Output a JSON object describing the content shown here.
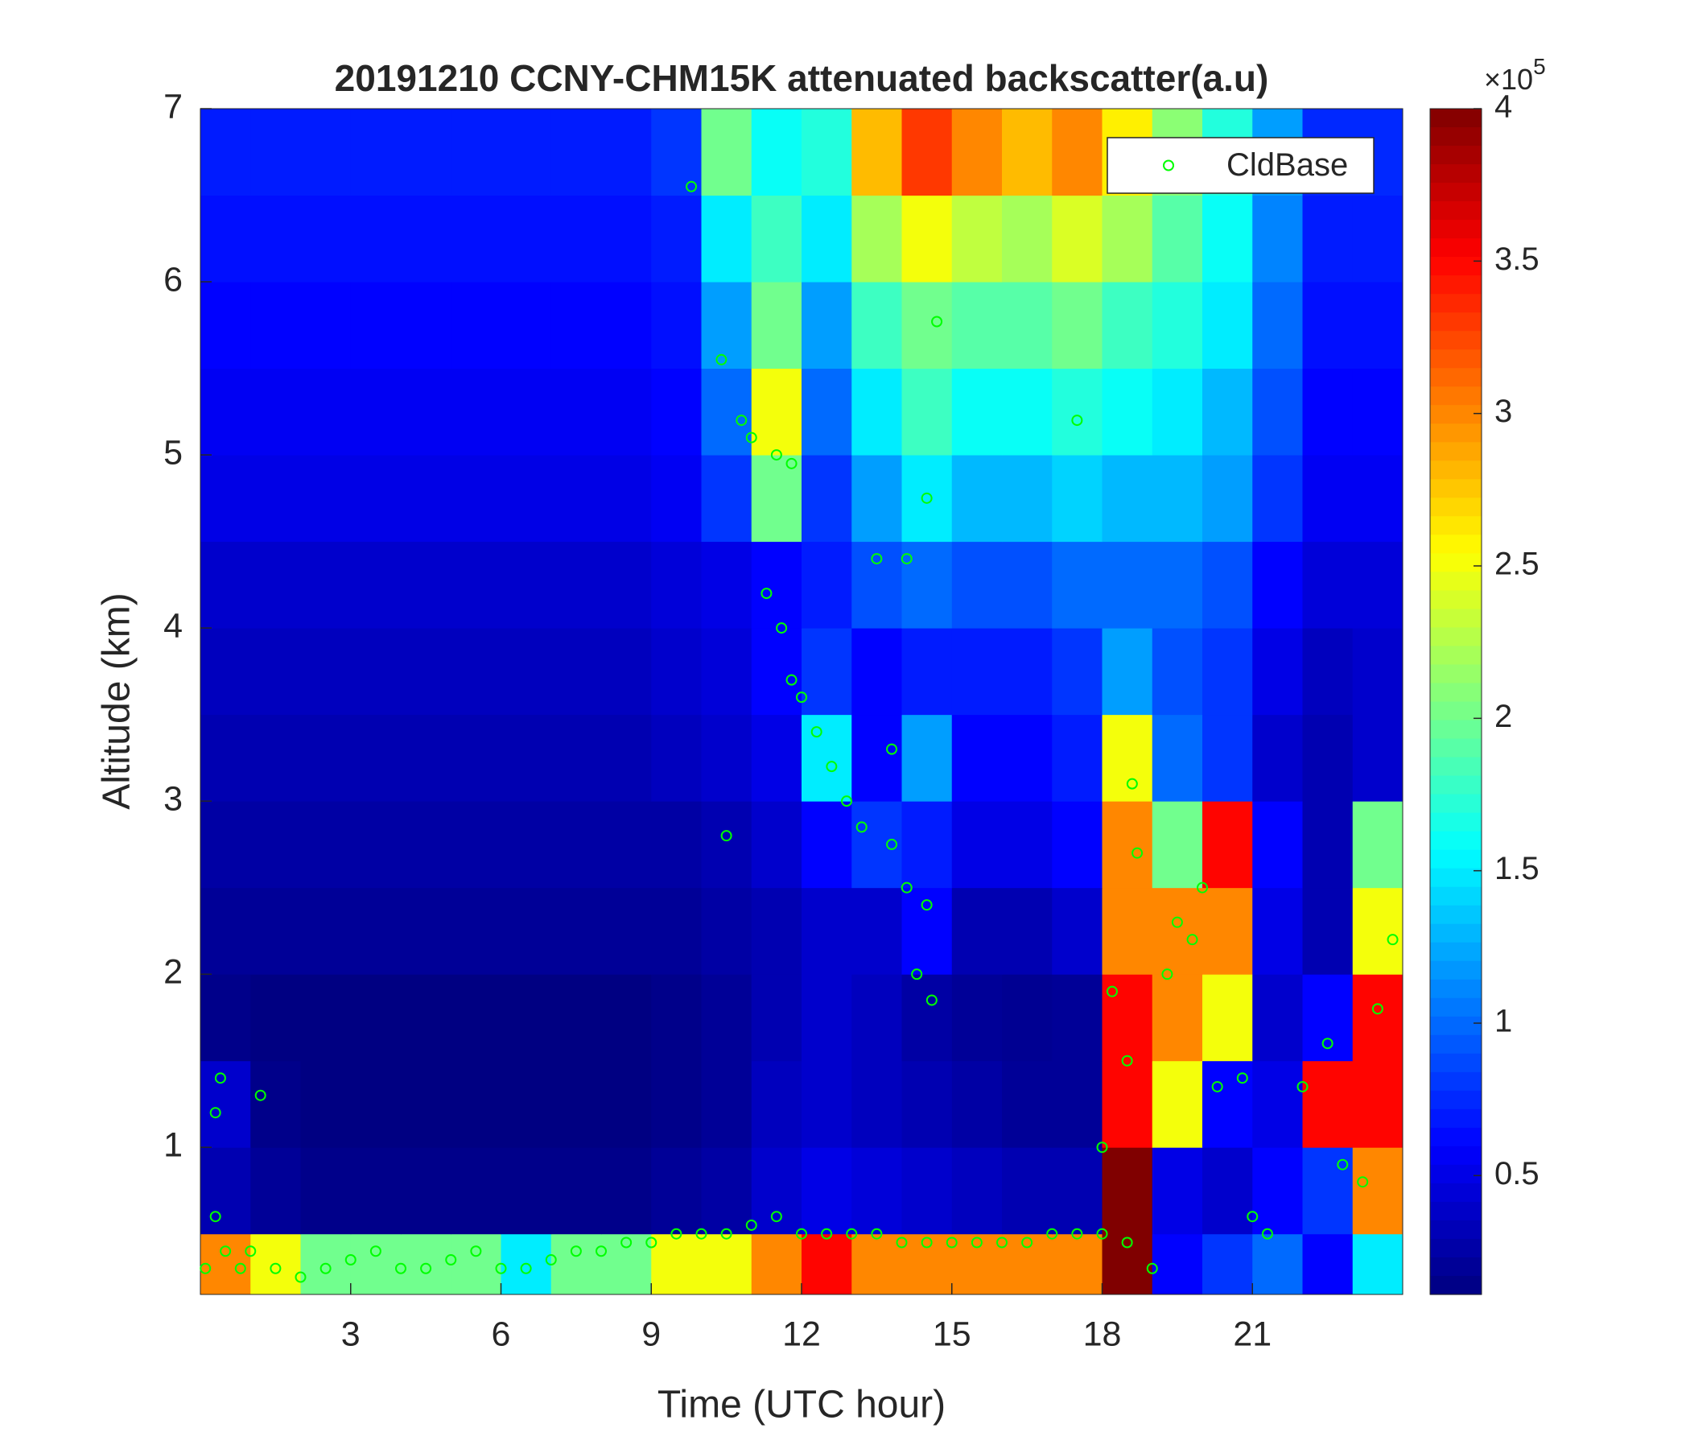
{
  "chart_data": {
    "type": "heatmap",
    "title": "20191210 CCNY-CHM15K attenuated backscatter(a.u)",
    "xlabel": "Time (UTC hour)",
    "ylabel": "Altitude (km)",
    "xlim": [
      0,
      24
    ],
    "ylim": [
      0.15,
      7
    ],
    "xticks": [
      3,
      6,
      9,
      12,
      15,
      18,
      21
    ],
    "yticks": [
      1,
      2,
      3,
      4,
      5,
      6,
      7
    ],
    "colormap": "jet",
    "clim": [
      11000,
      400000
    ],
    "colorbar_ticks": [
      {
        "value": 50000,
        "label": "0.5"
      },
      {
        "value": 100000,
        "label": "1"
      },
      {
        "value": 150000,
        "label": "1.5"
      },
      {
        "value": 200000,
        "label": "2"
      },
      {
        "value": 250000,
        "label": "2.5"
      },
      {
        "value": 300000,
        "label": "3"
      },
      {
        "value": 350000,
        "label": "3.5"
      },
      {
        "value": 400000,
        "label": "4"
      }
    ],
    "colorbar_multiplier": {
      "base": "×10",
      "exponent": "5"
    },
    "legend": "northeast",
    "xbins": [
      0,
      1,
      2,
      3,
      4,
      5,
      6,
      7,
      8,
      9,
      10,
      11,
      12,
      13,
      14,
      15,
      16,
      17,
      18,
      19,
      20,
      21,
      22,
      23,
      24
    ],
    "ybins": [
      0.15,
      0.5,
      1,
      1.5,
      2,
      2.5,
      3,
      3.5,
      4,
      4.5,
      5,
      5.5,
      6,
      6.5,
      7
    ],
    "z": [
      [
        300000,
        250000,
        200000,
        200000,
        200000,
        200000,
        150000,
        200000,
        200000,
        250000,
        250000,
        300000,
        350000,
        300000,
        300000,
        300000,
        300000,
        300000,
        400000,
        60000,
        80000,
        100000,
        60000,
        150000
      ],
      [
        30000,
        20000,
        15000,
        15000,
        15000,
        15000,
        15000,
        15000,
        15000,
        20000,
        25000,
        40000,
        50000,
        45000,
        40000,
        35000,
        30000,
        30000,
        400000,
        50000,
        40000,
        60000,
        80000,
        300000
      ],
      [
        40000,
        15000,
        12000,
        12000,
        12000,
        12000,
        12000,
        12000,
        12000,
        15000,
        20000,
        35000,
        40000,
        35000,
        30000,
        25000,
        20000,
        20000,
        350000,
        250000,
        60000,
        50000,
        350000,
        350000
      ],
      [
        15000,
        12000,
        12000,
        12000,
        12000,
        12000,
        12000,
        12000,
        12000,
        15000,
        20000,
        30000,
        40000,
        35000,
        25000,
        20000,
        18000,
        20000,
        350000,
        300000,
        250000,
        40000,
        60000,
        350000
      ],
      [
        20000,
        20000,
        20000,
        20000,
        20000,
        20000,
        20000,
        20000,
        20000,
        20000,
        25000,
        30000,
        40000,
        40000,
        60000,
        30000,
        30000,
        40000,
        300000,
        300000,
        300000,
        50000,
        30000,
        250000
      ],
      [
        25000,
        25000,
        25000,
        25000,
        25000,
        25000,
        25000,
        25000,
        25000,
        25000,
        30000,
        40000,
        60000,
        80000,
        70000,
        50000,
        50000,
        60000,
        300000,
        200000,
        350000,
        60000,
        30000,
        200000
      ],
      [
        30000,
        30000,
        30000,
        30000,
        30000,
        30000,
        30000,
        30000,
        30000,
        35000,
        40000,
        50000,
        150000,
        60000,
        120000,
        60000,
        60000,
        70000,
        250000,
        100000,
        80000,
        40000,
        30000,
        40000
      ],
      [
        35000,
        35000,
        35000,
        35000,
        35000,
        35000,
        35000,
        35000,
        35000,
        40000,
        45000,
        60000,
        80000,
        60000,
        70000,
        70000,
        70000,
        80000,
        120000,
        90000,
        80000,
        50000,
        35000,
        40000
      ],
      [
        40000,
        40000,
        40000,
        40000,
        40000,
        40000,
        40000,
        40000,
        40000,
        45000,
        50000,
        60000,
        70000,
        90000,
        100000,
        90000,
        90000,
        100000,
        100000,
        100000,
        90000,
        60000,
        45000,
        45000
      ],
      [
        50000,
        50000,
        50000,
        50000,
        50000,
        50000,
        50000,
        50000,
        50000,
        55000,
        80000,
        200000,
        80000,
        120000,
        150000,
        130000,
        130000,
        140000,
        130000,
        130000,
        120000,
        80000,
        55000,
        55000
      ],
      [
        55000,
        55000,
        55000,
        55000,
        55000,
        55000,
        55000,
        55000,
        55000,
        60000,
        100000,
        250000,
        100000,
        150000,
        180000,
        160000,
        160000,
        170000,
        160000,
        150000,
        130000,
        90000,
        60000,
        60000
      ],
      [
        60000,
        60000,
        60000,
        60000,
        60000,
        60000,
        60000,
        60000,
        60000,
        65000,
        120000,
        200000,
        120000,
        180000,
        200000,
        190000,
        190000,
        200000,
        180000,
        170000,
        150000,
        100000,
        65000,
        65000
      ],
      [
        65000,
        65000,
        65000,
        65000,
        65000,
        65000,
        65000,
        65000,
        65000,
        70000,
        150000,
        180000,
        150000,
        220000,
        250000,
        230000,
        220000,
        240000,
        220000,
        190000,
        160000,
        110000,
        70000,
        70000
      ],
      [
        70000,
        70000,
        70000,
        70000,
        70000,
        70000,
        70000,
        70000,
        70000,
        80000,
        200000,
        160000,
        170000,
        280000,
        330000,
        300000,
        280000,
        300000,
        260000,
        210000,
        170000,
        120000,
        75000,
        75000
      ]
    ],
    "series": [
      {
        "name": "CldBase",
        "color": "#00ff00",
        "x": [
          0.1,
          0.3,
          0.5,
          0.3,
          0.4,
          0.8,
          1,
          1.2,
          1.5,
          2,
          2.5,
          3,
          3.5,
          4,
          4.5,
          5,
          5.5,
          6,
          6.5,
          7,
          7.5,
          8,
          8.5,
          9,
          9.5,
          10,
          10.5,
          11,
          11.5,
          12,
          12.5,
          13,
          13.5,
          14,
          14.5,
          15,
          15.5,
          16,
          16.5,
          17,
          17.5,
          18,
          18.5,
          9.8,
          10.4,
          10.8,
          11,
          11.5,
          11.8,
          11.3,
          11.6,
          11.8,
          12,
          12.3,
          12.6,
          12.9,
          13.2,
          13.8,
          14.1,
          14.5,
          14.3,
          14.6,
          13.5,
          14.1,
          14.5,
          13.8,
          10.5,
          14.7,
          17.5,
          18,
          18.2,
          18.5,
          18.7,
          18.6,
          19,
          19.3,
          19.5,
          19.8,
          20,
          20.3,
          20.8,
          21,
          21.3,
          22,
          22.5,
          22.8,
          23.2,
          23.5,
          23.8
        ],
        "values": [
          0.3,
          0.6,
          0.4,
          1.2,
          1.4,
          0.3,
          0.4,
          1.3,
          0.3,
          0.25,
          0.3,
          0.35,
          0.4,
          0.3,
          0.3,
          0.35,
          0.4,
          0.3,
          0.3,
          0.35,
          0.4,
          0.4,
          0.45,
          0.45,
          0.5,
          0.5,
          0.5,
          0.55,
          0.6,
          0.5,
          0.5,
          0.5,
          0.5,
          0.45,
          0.45,
          0.45,
          0.45,
          0.45,
          0.45,
          0.5,
          0.5,
          0.5,
          0.45,
          6.55,
          5.55,
          5.2,
          5.1,
          5,
          4.95,
          4.2,
          4,
          3.7,
          3.6,
          3.4,
          3.2,
          3,
          2.85,
          2.75,
          2.5,
          2.4,
          2,
          1.85,
          4.4,
          4.4,
          4.75,
          3.3,
          2.8,
          5.77,
          5.2,
          1,
          1.9,
          1.5,
          2.7,
          3.1,
          0.3,
          2,
          2.3,
          2.2,
          2.5,
          1.35,
          1.4,
          0.6,
          0.5,
          1.35,
          1.6,
          0.9,
          0.8,
          1.8,
          2.2
        ]
      }
    ]
  }
}
